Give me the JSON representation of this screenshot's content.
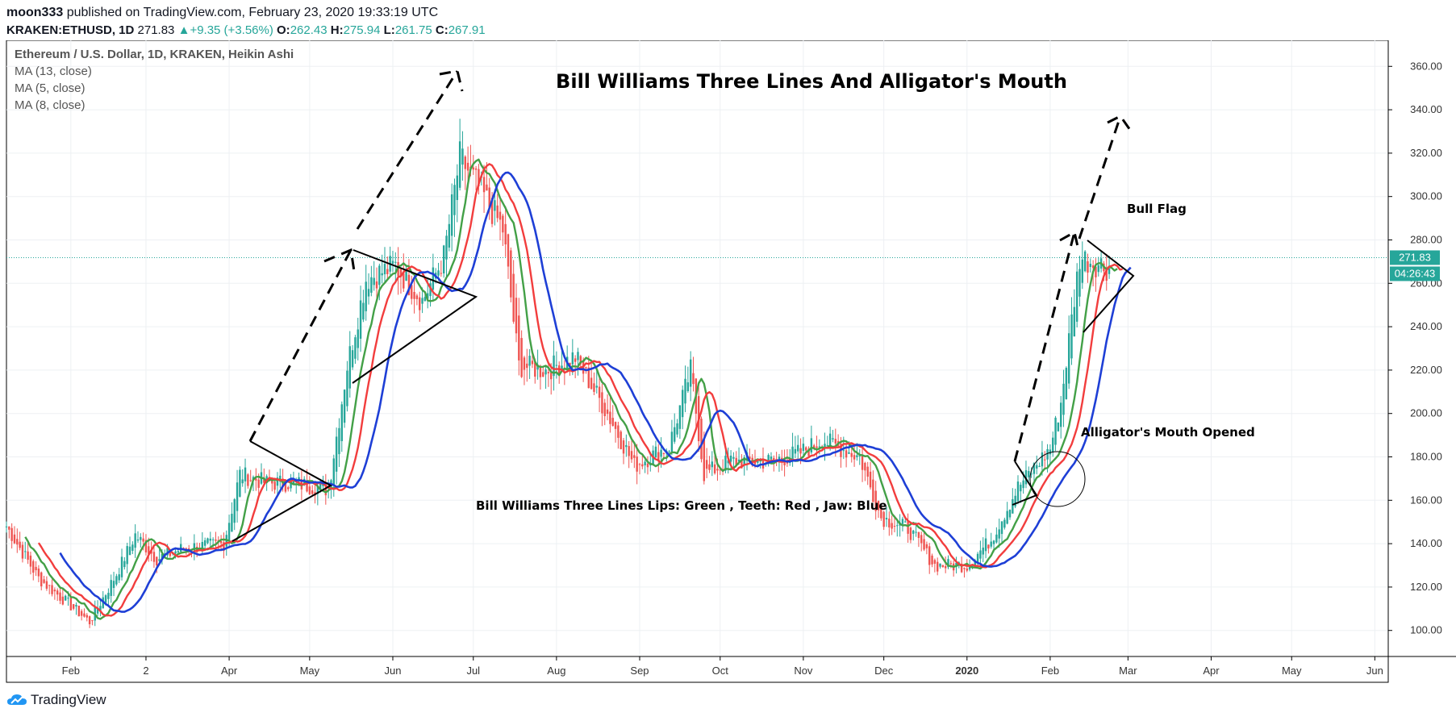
{
  "header": {
    "author": "moon333",
    "published_text": "published on TradingView.com, February 23, 2020 19:33:19 UTC",
    "symbol": "KRAKEN:ETHUSD, 1D",
    "last": "271.83",
    "change": "+9.35 (+3.56%)",
    "o_label": "O:",
    "o": "262.43",
    "h_label": "H:",
    "h": "275.94",
    "l_label": "L:",
    "l": "261.75",
    "c_label": "C:",
    "c": "267.91"
  },
  "legend": {
    "title": "Ethereum / U.S. Dollar, 1D, KRAKEN, Heikin Ashi",
    "items": [
      "MA (13, close)",
      "MA (5, close)",
      "MA (8, close)"
    ]
  },
  "annotations": {
    "main_title": "Bill Williams Three Lines And Alligator's Mouth",
    "bull_flag": "Bull Flag",
    "mouth": "Alligator's Mouth Opened",
    "lines_note": "Bill Williams Three Lines Lips: Green , Teeth: Red , Jaw: Blue"
  },
  "price_labels": {
    "last_price": "271.83",
    "countdown": "04:26:43"
  },
  "footer": {
    "brand": "TradingView"
  },
  "colors": {
    "up": "#26a69a",
    "down": "#ef5350",
    "lips": "#43a047",
    "teeth": "#f23d3d",
    "jaw": "#1e3fd6",
    "last_line": "#26a69a"
  },
  "chart_data": {
    "type": "candlestick",
    "ylim": [
      88,
      372
    ],
    "y_ticks": [
      "100.00",
      "120.00",
      "140.00",
      "160.00",
      "180.00",
      "200.00",
      "220.00",
      "240.00",
      "260.00",
      "280.00",
      "300.00",
      "320.00",
      "340.00",
      "360.00"
    ],
    "x_ticks": [
      "Feb",
      "2",
      "Apr",
      "May",
      "Jun",
      "Jul",
      "Aug",
      "Sep",
      "Oct",
      "Nov",
      "Dec",
      "2020",
      "Feb",
      "Mar",
      "Apr",
      "May",
      "Jun"
    ],
    "x_tick_dates": [
      "2019-02-01",
      "2019-03-01",
      "2019-04-01",
      "2019-05-01",
      "2019-06-01",
      "2019-07-01",
      "2019-08-01",
      "2019-09-01",
      "2019-10-01",
      "2019-11-01",
      "2019-12-01",
      "2020-01-01",
      "2020-02-01",
      "2020-03-01",
      "2020-04-01",
      "2020-05-01",
      "2020-06-01"
    ],
    "x_domain": [
      "2019-01-08",
      "2020-06-06"
    ],
    "last_price": 271.83,
    "price_anchors": [
      [
        "2019-01-08",
        148
      ],
      [
        "2019-01-20",
        124
      ],
      [
        "2019-02-08",
        104
      ],
      [
        "2019-02-18",
        126
      ],
      [
        "2019-02-25",
        144
      ],
      [
        "2019-03-05",
        133
      ],
      [
        "2019-03-15",
        138
      ],
      [
        "2019-03-30",
        140
      ],
      [
        "2019-04-05",
        172
      ],
      [
        "2019-04-15",
        168
      ],
      [
        "2019-04-25",
        168
      ],
      [
        "2019-05-08",
        165
      ],
      [
        "2019-05-15",
        222
      ],
      [
        "2019-05-22",
        262
      ],
      [
        "2019-06-02",
        268
      ],
      [
        "2019-06-12",
        252
      ],
      [
        "2019-06-20",
        272
      ],
      [
        "2019-06-26",
        318
      ],
      [
        "2019-07-05",
        300
      ],
      [
        "2019-07-12",
        285
      ],
      [
        "2019-07-18",
        222
      ],
      [
        "2019-07-28",
        220
      ],
      [
        "2019-08-08",
        226
      ],
      [
        "2019-08-20",
        200
      ],
      [
        "2019-08-30",
        176
      ],
      [
        "2019-09-12",
        185
      ],
      [
        "2019-09-20",
        220
      ],
      [
        "2019-09-25",
        172
      ],
      [
        "2019-10-05",
        178
      ],
      [
        "2019-10-20",
        178
      ],
      [
        "2019-10-31",
        182
      ],
      [
        "2019-11-08",
        188
      ],
      [
        "2019-11-22",
        180
      ],
      [
        "2019-11-30",
        152
      ],
      [
        "2019-12-10",
        147
      ],
      [
        "2019-12-20",
        130
      ],
      [
        "2020-01-01",
        130
      ],
      [
        "2020-01-10",
        142
      ],
      [
        "2020-01-20",
        166
      ],
      [
        "2020-02-01",
        184
      ],
      [
        "2020-02-05",
        205
      ],
      [
        "2020-02-12",
        272
      ],
      [
        "2020-02-17",
        270
      ],
      [
        "2020-02-23",
        267
      ]
    ],
    "series": [
      {
        "name": "MA (5, close)",
        "color": "#43a047",
        "period": 5
      },
      {
        "name": "MA (8, close)",
        "color": "#f23d3d",
        "period": 8
      },
      {
        "name": "MA (13, close)",
        "color": "#1e3fd6",
        "period": 13
      }
    ]
  }
}
